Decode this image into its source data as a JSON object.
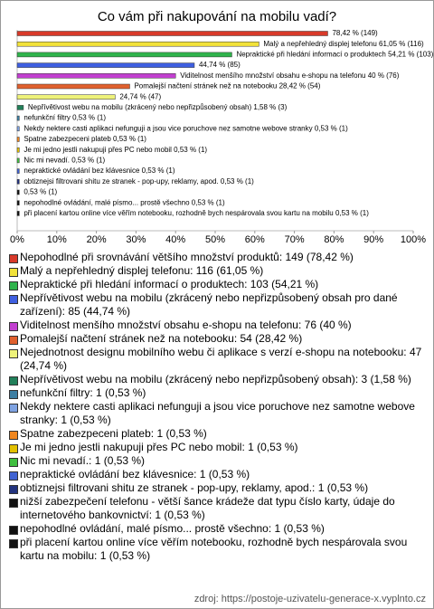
{
  "chart_data": {
    "type": "hbar",
    "title": "Co vám při nakupování na mobilu vadí?",
    "categories": [
      "Nepohodlné při srovnávání většího množství produktů: 149 (78,42 %)",
      "Malý a nepřehledný displej telefonu: 116 (61,05 %)",
      "Nepraktické při hledání informací o produktech: 103 (54,21 %)",
      "Nepřívětivost webu na mobilu (zkrácený nebo nepřizpůsobený obsah pro dané zařízení): 85 (44,74 %)",
      "Viditelnost menšího množství obsahu e-shopu na telefonu: 76 (40 %)",
      "Pomalejší načtení stránek než na notebooku: 54 (28,42 %)",
      "Nejednotnost designu mobilního webu či aplikace s verzí e-shopu na notebooku: 47 (24,74 %)",
      "Nepřívětivost webu na mobilu (zkrácený nebo nepřizpůsobený obsah): 3 (1,58 %)",
      "nefunkční filtry: 1 (0,53 %)",
      "Nekdy nektere casti aplikaci nefunguji a jsou vice poruchove nez samotne webove stranky: 1 (0,53 %)",
      "Spatne zabezpeceni plateb: 1 (0,53 %)",
      "Je mi jedno jestli nakupuji přes PC nebo mobil: 1 (0,53 %)",
      "Nic mi nevadí.: 1 (0,53 %)",
      "nepraktické ovládání bez klávesnice: 1 (0,53 %)",
      "obtiznejsi filtrovani shitu ze stranek - pop-upy, reklamy, apod.: 1 (0,53 %)",
      "nižší zabezpečení telefonu - větší šance krádeže dat typu číslo karty, údaje do internetového bankovnictví: 1 (0,53 %)",
      "nepohodlné ovládání, malé písmo... prostě všechno: 1 (0,53 %)",
      "při placení kartou online více věřím notebooku, rozhodně bych nespárovala svou kartu na mobilu: 1 (0,53 %)"
    ],
    "values": [
      78.42,
      61.05,
      54.21,
      44.74,
      40,
      28.42,
      24.74,
      1.58,
      0.53,
      0.53,
      0.53,
      0.53,
      0.53,
      0.53,
      0.53,
      0.53,
      0.53,
      0.53
    ],
    "value_labels": [
      "78,42 % (149)",
      "Malý a nepřehledný displej telefonu 61,05 % (116)",
      "Nepraktické při hledání informací o produktech 54,21 % (103)",
      "44,74 % (85)",
      "Viditelnost menšího množství obsahu e-shopu na telefonu 40 % (76)",
      "Pomalejší načtení stránek než na notebooku 28,42 % (54)",
      "24,74 % (47)",
      "Nepřívětivost webu na mobilu (zkrácený nebo nepřizpůsobený obsah) 1,58 % (3)",
      "nefunkční filtry 0,53 % (1)",
      "Nekdy nektere casti aplikaci nefunguji a jsou vice poruchove nez samotne webove stranky 0,53 % (1)",
      "Spatne zabezpeceni plateb 0,53 % (1)",
      "Je mi jedno jestli nakupuji přes PC nebo mobil 0,53 % (1)",
      "Nic mi nevadí. 0,53 % (1)",
      "nepraktické ovládání bez klávesnice 0,53 % (1)",
      "obtiznejsi filtrovani shitu ze stranek - pop-upy, reklamy, apod. 0,53 % (1)",
      "0,53 % (1)",
      "nepohodlné ovládání, malé písmo... prostě všechno 0,53 % (1)",
      "při placení kartou online více věřím notebooku, rozhodně bych nespárovala svou kartu na mobilu 0,53 % (1)"
    ],
    "colors": [
      "#d83a2a",
      "#f2e23a",
      "#2fb34c",
      "#3f5fe0",
      "#c23fd0",
      "#e0602e",
      "#eef27a",
      "#22805a",
      "#3d7fa3",
      "#7fa3e2",
      "#f0861e",
      "#e2c000",
      "#3fbf3f",
      "#3f62d2",
      "#23337f",
      "#111111",
      "#111111",
      "#111111"
    ],
    "xlim": [
      0,
      100
    ],
    "xticks": [
      {
        "value": 0,
        "label": "0%"
      },
      {
        "value": 10,
        "label": "10%"
      },
      {
        "value": 20,
        "label": "20%"
      },
      {
        "value": 30,
        "label": "30%"
      },
      {
        "value": 40,
        "label": "40%"
      },
      {
        "value": 50,
        "label": "50%"
      },
      {
        "value": 60,
        "label": "60%"
      },
      {
        "value": 70,
        "label": "70%"
      },
      {
        "value": 80,
        "label": "80%"
      },
      {
        "value": 90,
        "label": "90%"
      },
      {
        "value": 100,
        "label": "100%"
      }
    ],
    "source": "zdroj: https://postoje-uzivatelu-generace-x.vyplnto.cz"
  }
}
